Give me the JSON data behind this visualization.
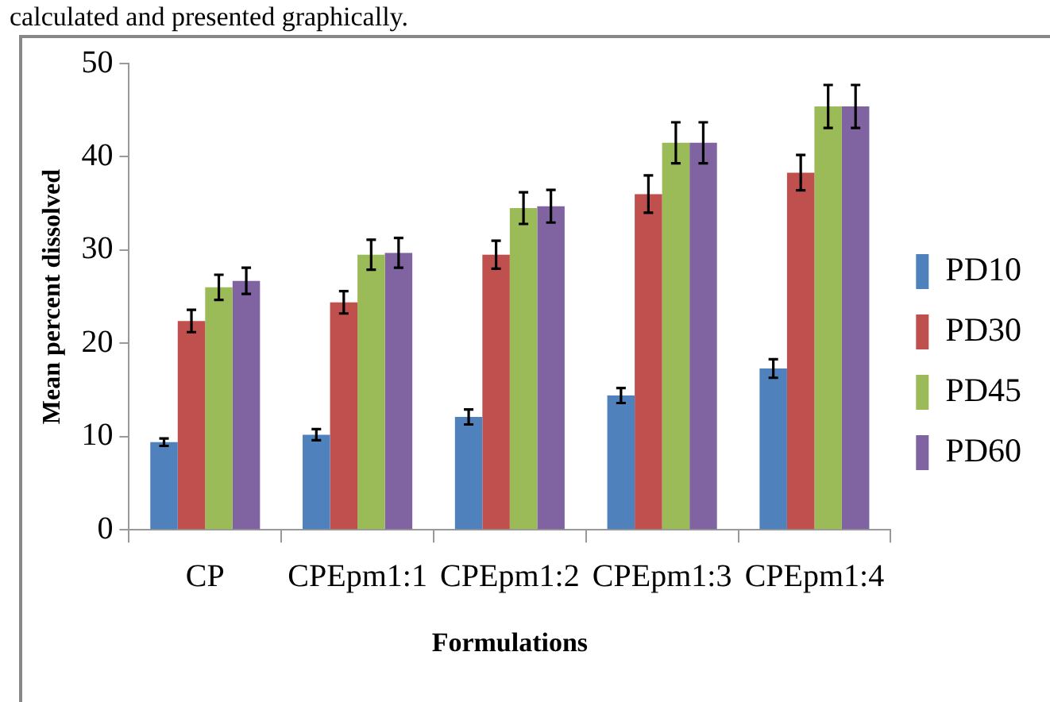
{
  "chart_data": {
    "type": "bar",
    "annotations": [
      "calculated and presented graphically."
    ],
    "xlabel": "Formulations",
    "ylabel": "Mean percent dissolved",
    "categories": [
      "CP",
      "CPEpm1:1",
      "CPEpm1:2",
      "CPEpm1:3",
      "CPEpm1:4"
    ],
    "series": [
      {
        "name": "PD10",
        "color": "#4f81bd",
        "values": [
          9.4,
          10.2,
          12.1,
          14.4,
          17.3
        ],
        "errors": [
          0.4,
          0.6,
          0.8,
          0.8,
          1.0
        ]
      },
      {
        "name": "PD30",
        "color": "#c0504d",
        "values": [
          22.4,
          24.4,
          29.5,
          36.0,
          38.3
        ],
        "errors": [
          1.2,
          1.2,
          1.5,
          2.0,
          1.9
        ]
      },
      {
        "name": "PD45",
        "color": "#9bbb59",
        "values": [
          26.0,
          29.5,
          34.5,
          41.5,
          45.4
        ],
        "errors": [
          1.35,
          1.6,
          1.7,
          2.2,
          2.3
        ]
      },
      {
        "name": "PD60",
        "color": "#8064a2",
        "values": [
          26.7,
          29.7,
          34.7,
          41.5,
          45.4
        ],
        "errors": [
          1.4,
          1.6,
          1.75,
          2.2,
          2.3
        ]
      }
    ],
    "ylim": [
      0,
      50
    ],
    "yticks": [
      0,
      10,
      20,
      30,
      40,
      50
    ],
    "grid": false,
    "legend": "right"
  }
}
